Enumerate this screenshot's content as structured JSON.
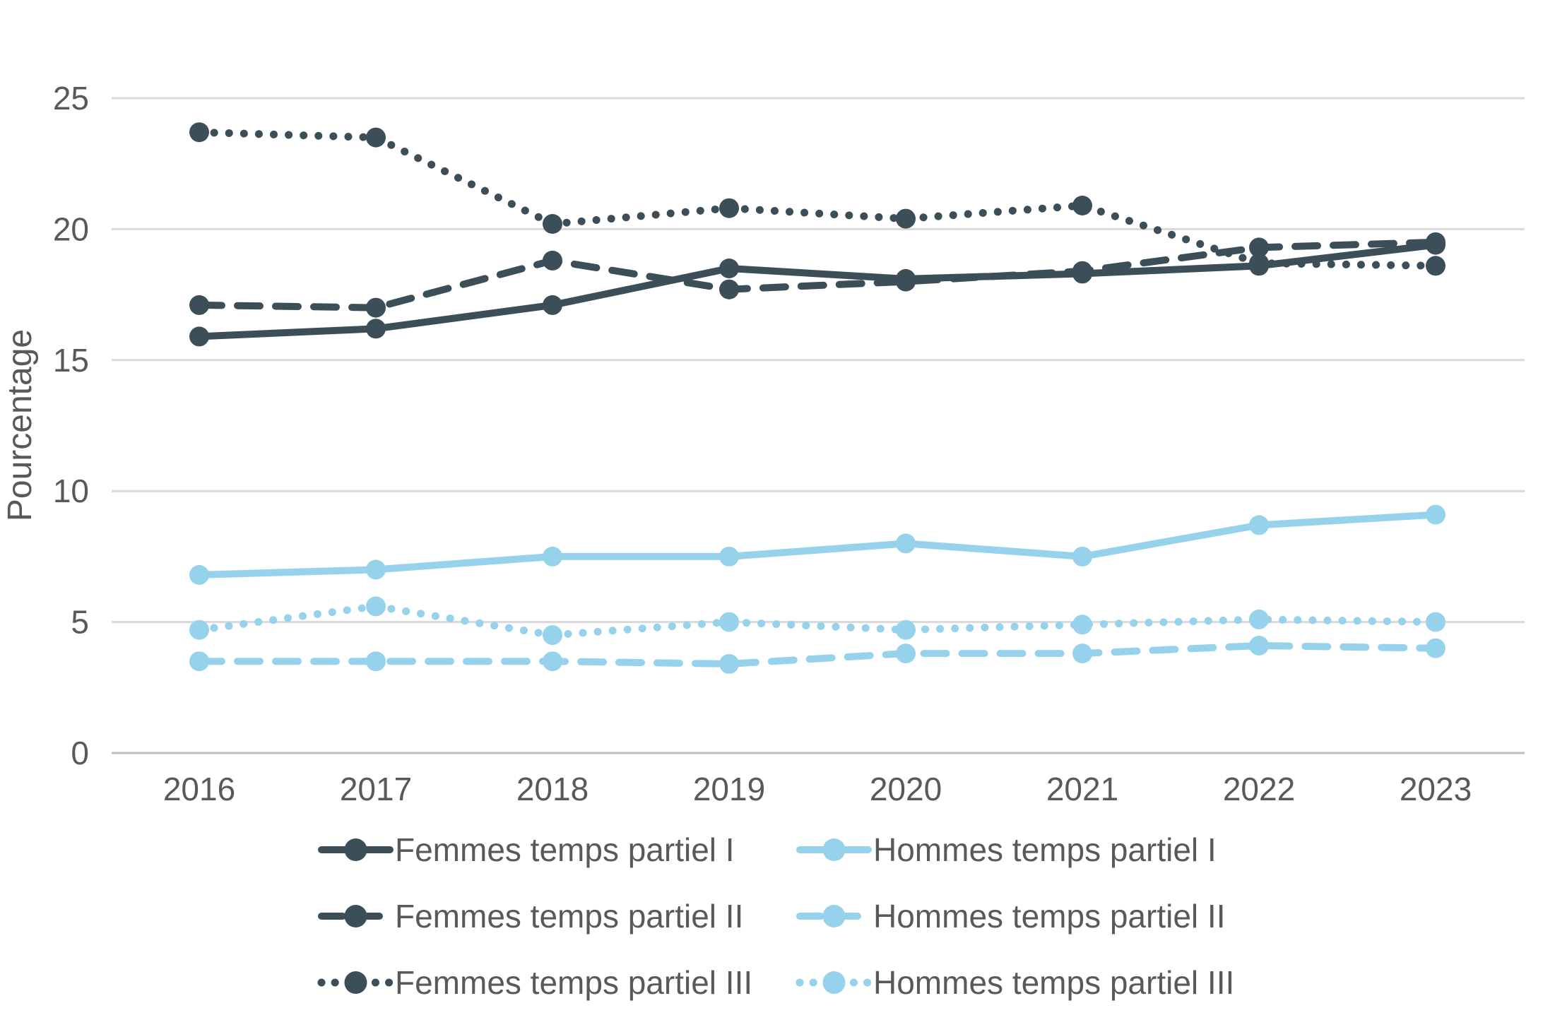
{
  "chart_data": {
    "type": "line",
    "title": "",
    "xlabel": "",
    "ylabel": "Pourcentage",
    "x": [
      2016,
      2017,
      2018,
      2019,
      2020,
      2021,
      2022,
      2023
    ],
    "ylim": [
      0,
      27.5
    ],
    "yticks": [
      0,
      5,
      10,
      15,
      20,
      25
    ],
    "grid": true,
    "legend_position": "bottom",
    "colors": {
      "femmes": "#3C4E58",
      "hommes": "#97D2ED",
      "axis_text": "#595959",
      "gridline": "#D9D9D9",
      "zero_line": "#BDBDBD"
    },
    "series": [
      {
        "name": "Femmes temps partiel I",
        "style": "solid",
        "color": "#3C4E58",
        "values": [
          15.9,
          16.2,
          17.1,
          18.5,
          18.1,
          18.3,
          18.6,
          19.4
        ]
      },
      {
        "name": "Femmes temps partiel II",
        "style": "dashed",
        "color": "#3C4E58",
        "values": [
          17.1,
          17.0,
          18.8,
          17.7,
          18.0,
          18.4,
          19.3,
          19.5
        ]
      },
      {
        "name": "Femmes temps partiel III",
        "style": "dotted",
        "color": "#3C4E58",
        "values": [
          23.7,
          23.5,
          20.2,
          20.8,
          20.4,
          20.9,
          18.7,
          18.6
        ]
      },
      {
        "name": "Hommes temps partiel I",
        "style": "solid",
        "color": "#97D2ED",
        "values": [
          6.8,
          7.0,
          7.5,
          7.5,
          8.0,
          7.5,
          8.7,
          9.1
        ]
      },
      {
        "name": "Hommes temps partiel II",
        "style": "dashed",
        "color": "#97D2ED",
        "values": [
          3.5,
          3.5,
          3.5,
          3.4,
          3.8,
          3.8,
          4.1,
          4.0
        ]
      },
      {
        "name": "Hommes temps partiel III",
        "style": "dotted",
        "color": "#97D2ED",
        "values": [
          4.7,
          5.6,
          4.5,
          5.0,
          4.7,
          4.9,
          5.1,
          5.0
        ]
      }
    ]
  }
}
